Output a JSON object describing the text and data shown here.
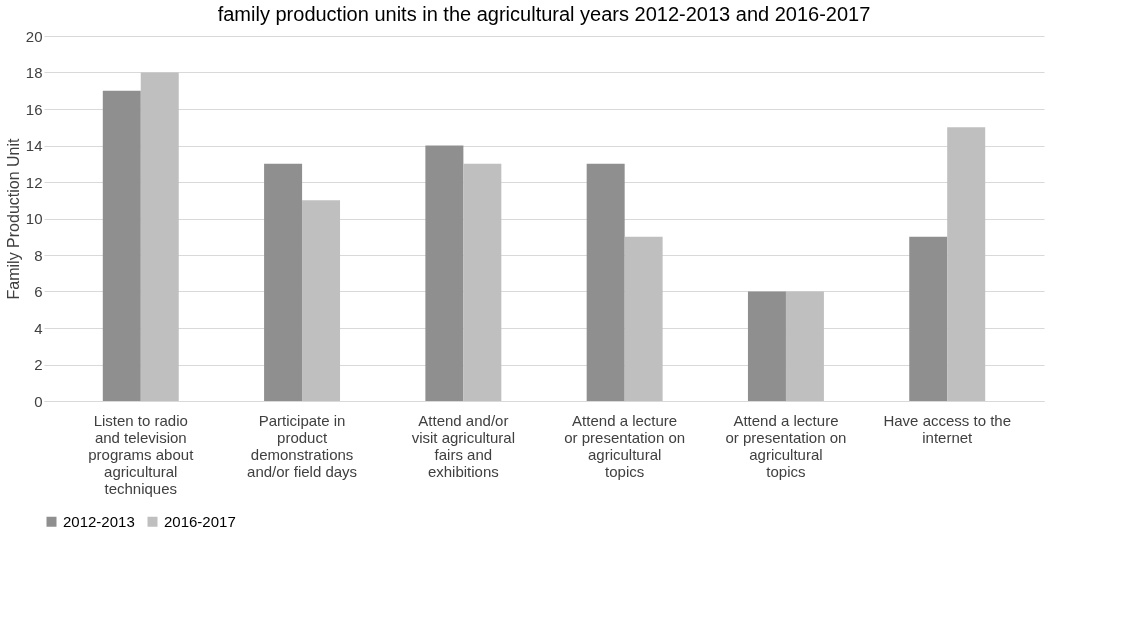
{
  "chart_data": {
    "type": "bar",
    "title": "family production units in the agricultural years 2012-2013 and 2016-2017",
    "ylabel": "Family Production Unit",
    "categories": [
      "Listen to radio and television programs about agricultural techniques",
      "Participate in product demonstrations and/or field days",
      "Attend and/or visit agricultural fairs and exhibitions",
      "Attend a lecture or presentation on agricultural topics",
      "Attend a lecture or presentation on agricultural topics",
      "Have access to the internet"
    ],
    "series": [
      {
        "name": "2012-2013",
        "color": "#8f8f8f",
        "values": [
          17,
          13,
          14,
          13,
          6,
          9
        ]
      },
      {
        "name": "2016-2017",
        "color": "#bfbfbf",
        "values": [
          18,
          11,
          13,
          9,
          6,
          15
        ]
      }
    ],
    "ylim": [
      0,
      20
    ],
    "yticks": [
      0,
      2,
      4,
      6,
      8,
      10,
      12,
      14,
      16,
      18,
      20
    ],
    "grid": "y",
    "legend": "bottom"
  }
}
